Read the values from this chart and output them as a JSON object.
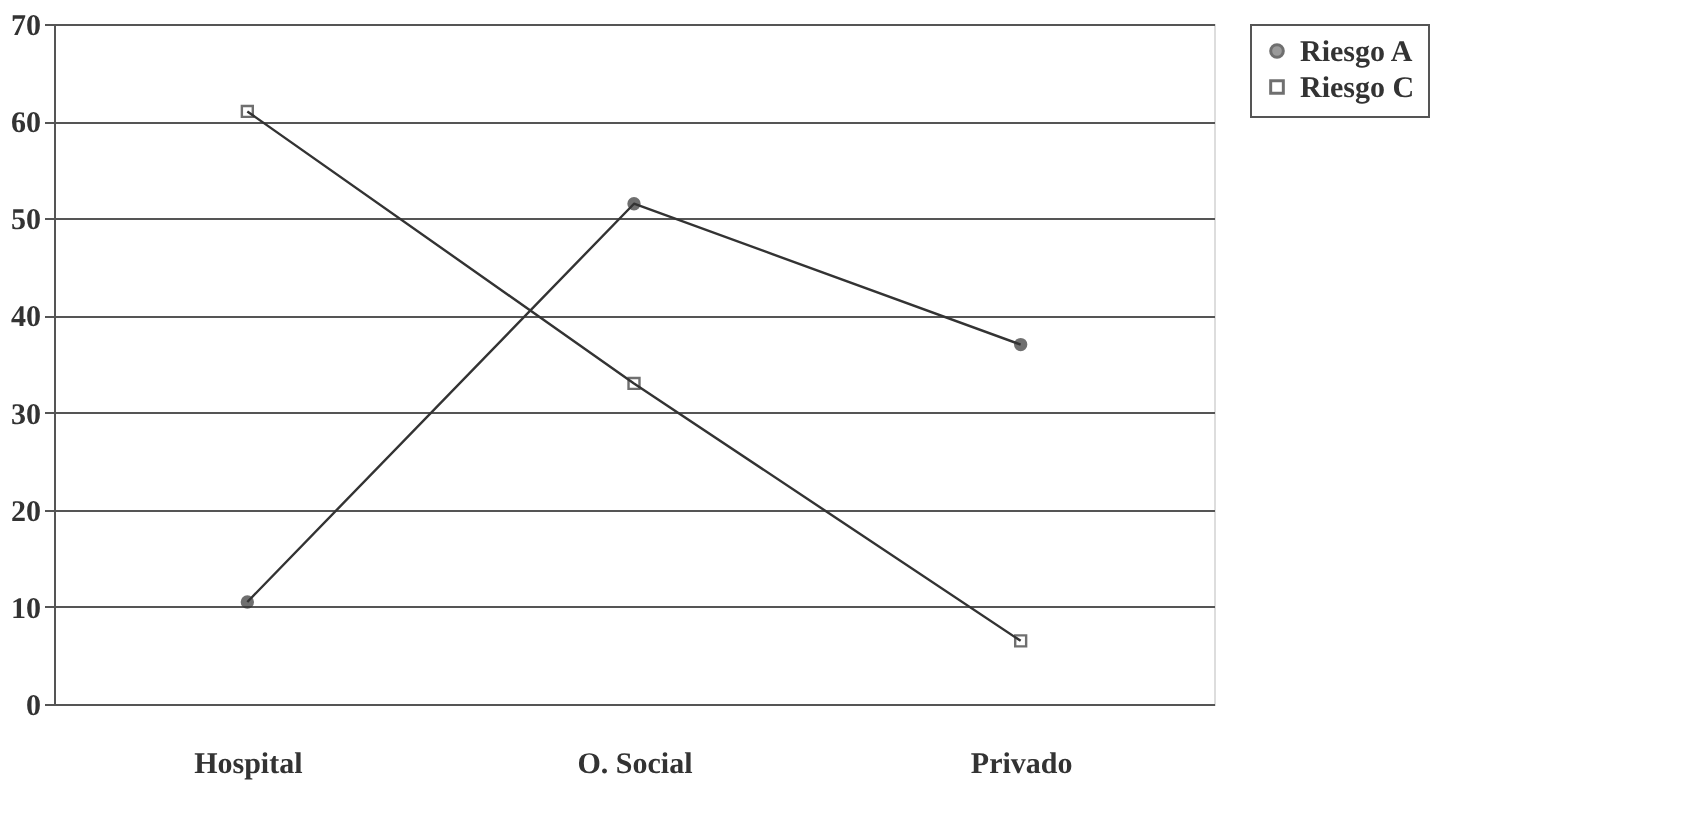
{
  "chart_data": {
    "type": "line",
    "categories": [
      "Hospital",
      "O. Social",
      "Privado"
    ],
    "series": [
      {
        "name": "Riesgo A",
        "color": "#333333",
        "values": [
          10.5,
          51.5,
          37
        ],
        "marker": "circle"
      },
      {
        "name": "Riesgo C",
        "color": "#333333",
        "values": [
          61,
          33,
          6.5
        ],
        "marker": "square"
      }
    ],
    "ylim": [
      0,
      70
    ],
    "yticks": [
      0,
      10,
      20,
      30,
      40,
      50,
      60,
      70
    ],
    "grid": "y",
    "legend": "right",
    "line_style": "solid"
  }
}
